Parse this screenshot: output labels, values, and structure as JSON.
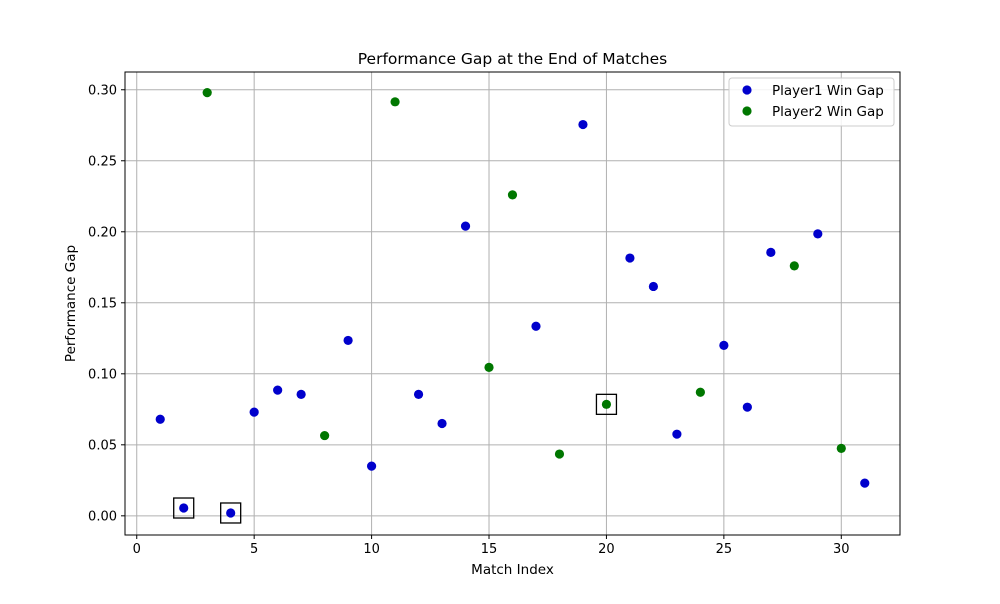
{
  "chart_data": {
    "type": "scatter",
    "title": "Performance Gap at the End of Matches",
    "xlabel": "Match Index",
    "ylabel": "Performance Gap",
    "xlim": [
      -0.5,
      32.5
    ],
    "ylim": [
      -0.0135,
      0.3125
    ],
    "xticks": [
      0,
      5,
      10,
      15,
      20,
      25,
      30
    ],
    "xtick_labels": [
      "0",
      "5",
      "10",
      "15",
      "20",
      "25",
      "30"
    ],
    "yticks": [
      0.0,
      0.05,
      0.1,
      0.15,
      0.2,
      0.25,
      0.3
    ],
    "ytick_labels": [
      "0.00",
      "0.05",
      "0.10",
      "0.15",
      "0.20",
      "0.25",
      "0.30"
    ],
    "grid": true,
    "legend_position": "top-right",
    "series": [
      {
        "name": "Player1 Win Gap",
        "color": "#0000cc",
        "points": [
          {
            "x": 1,
            "y": 0.068
          },
          {
            "x": 2,
            "y": 0.0055
          },
          {
            "x": 4,
            "y": 0.002
          },
          {
            "x": 5,
            "y": 0.073
          },
          {
            "x": 6,
            "y": 0.0885
          },
          {
            "x": 7,
            "y": 0.0855
          },
          {
            "x": 9,
            "y": 0.1235
          },
          {
            "x": 10,
            "y": 0.035
          },
          {
            "x": 12,
            "y": 0.0855
          },
          {
            "x": 13,
            "y": 0.065
          },
          {
            "x": 14,
            "y": 0.204
          },
          {
            "x": 17,
            "y": 0.1335
          },
          {
            "x": 19,
            "y": 0.2755
          },
          {
            "x": 21,
            "y": 0.1815
          },
          {
            "x": 22,
            "y": 0.1615
          },
          {
            "x": 23,
            "y": 0.0575
          },
          {
            "x": 25,
            "y": 0.12
          },
          {
            "x": 26,
            "y": 0.0765
          },
          {
            "x": 27,
            "y": 0.1855
          },
          {
            "x": 29,
            "y": 0.1985
          },
          {
            "x": 31,
            "y": 0.023
          }
        ]
      },
      {
        "name": "Player2 Win Gap",
        "color": "#007700",
        "points": [
          {
            "x": 3,
            "y": 0.298
          },
          {
            "x": 8,
            "y": 0.0565
          },
          {
            "x": 11,
            "y": 0.2915
          },
          {
            "x": 15,
            "y": 0.1045
          },
          {
            "x": 16,
            "y": 0.226
          },
          {
            "x": 18,
            "y": 0.0435
          },
          {
            "x": 20,
            "y": 0.0785
          },
          {
            "x": 24,
            "y": 0.087
          },
          {
            "x": 28,
            "y": 0.176
          },
          {
            "x": 30,
            "y": 0.0475
          }
        ]
      }
    ],
    "highlighted_points": [
      {
        "x": 2,
        "y": 0.0055
      },
      {
        "x": 4,
        "y": 0.002
      },
      {
        "x": 20,
        "y": 0.0785
      }
    ]
  }
}
